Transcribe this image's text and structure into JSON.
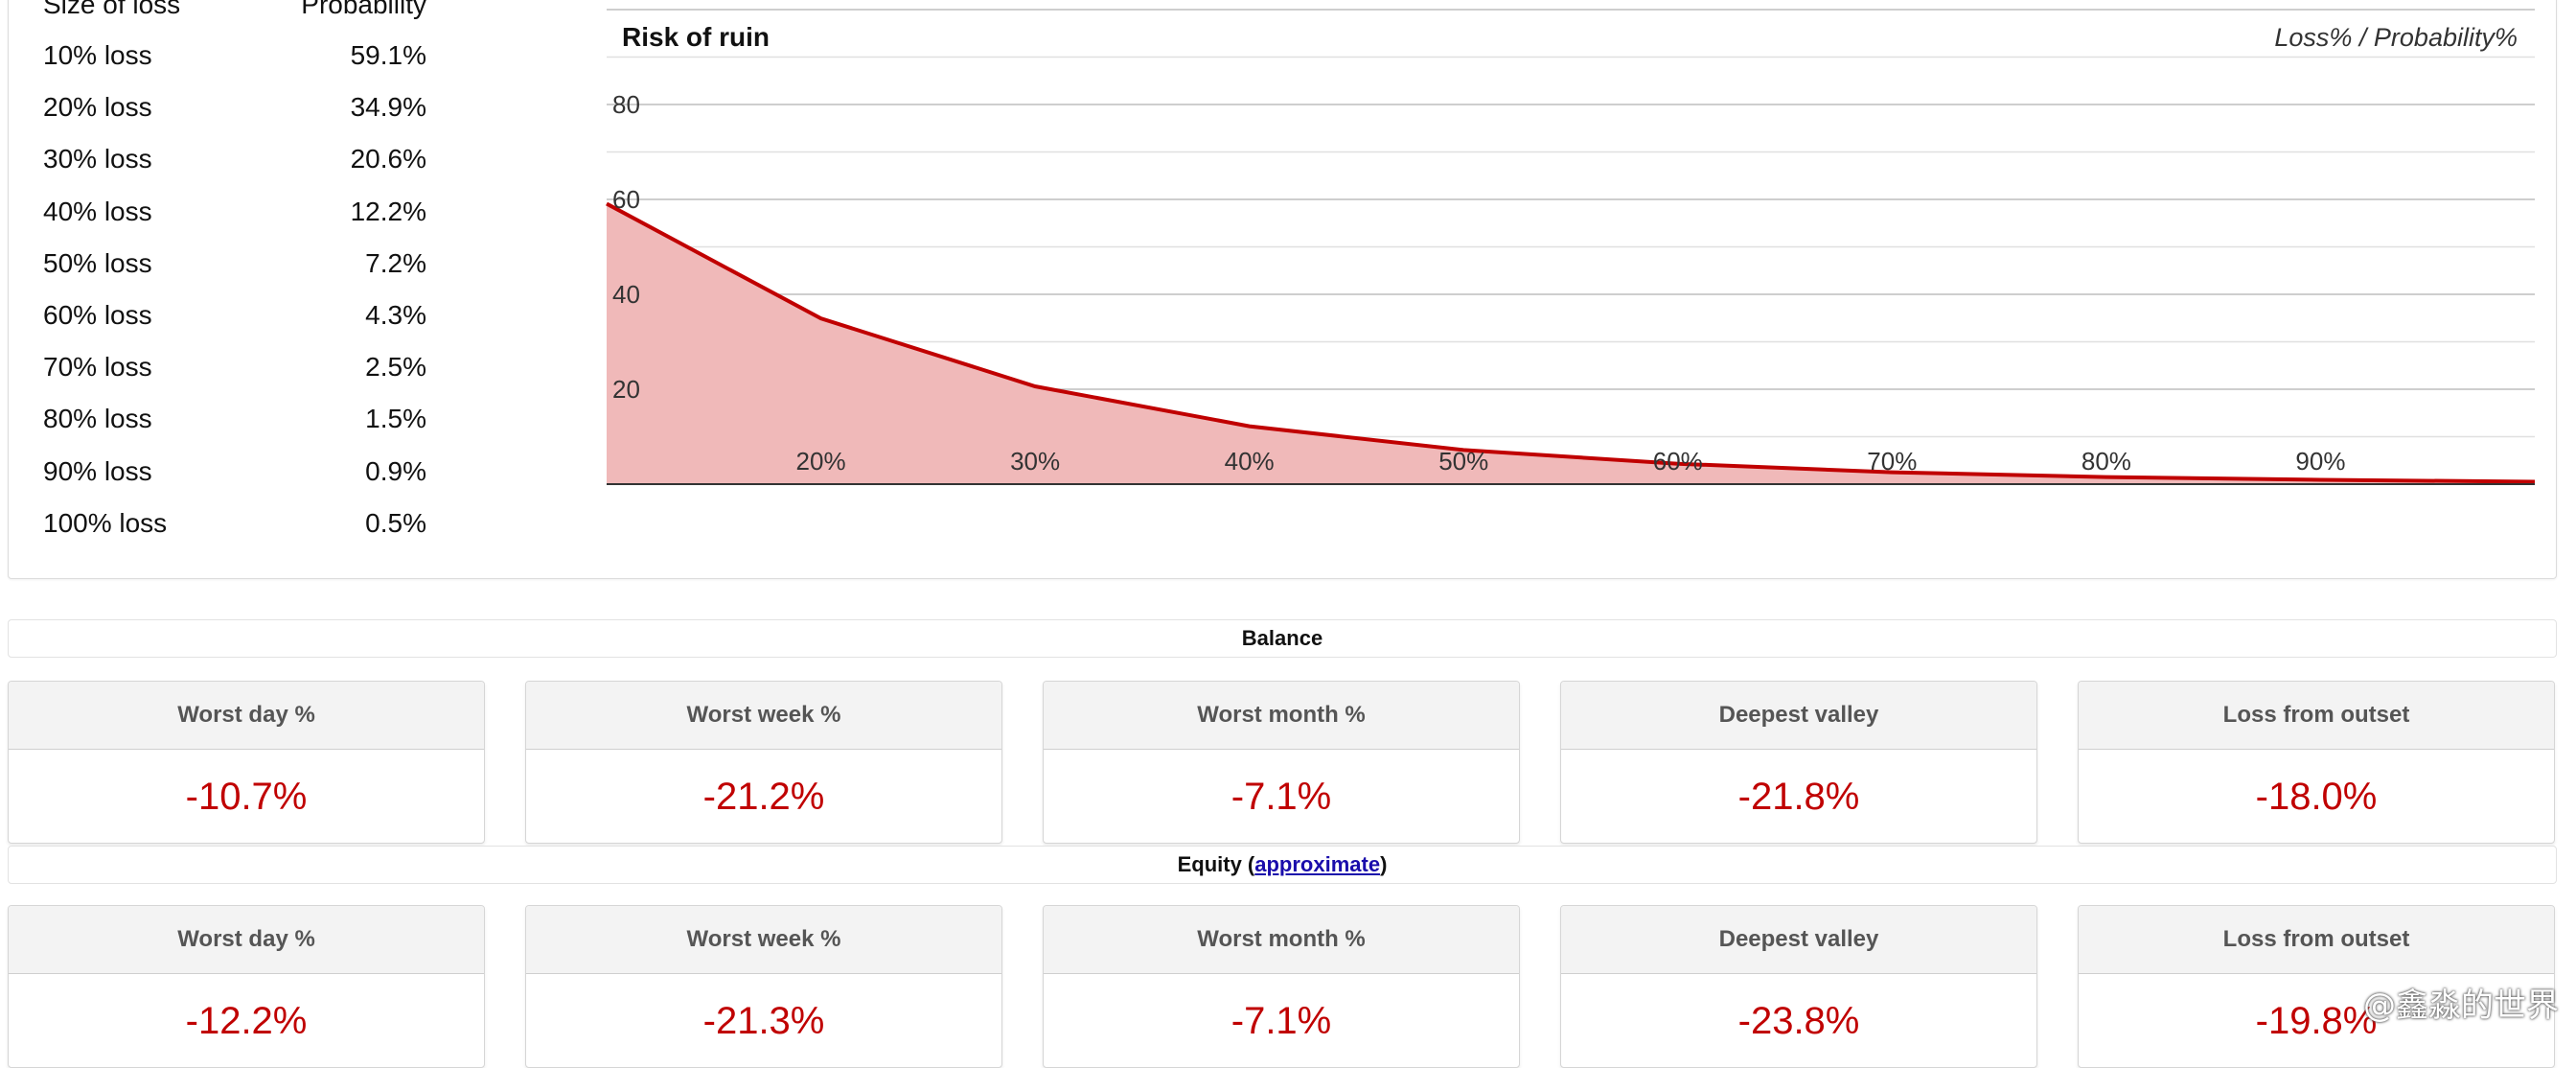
{
  "loss_table": {
    "header_size": "Size of loss",
    "header_prob": "Probability",
    "rows": [
      {
        "size": "10% loss",
        "prob": "59.1%"
      },
      {
        "size": "20% loss",
        "prob": "34.9%"
      },
      {
        "size": "30% loss",
        "prob": "20.6%"
      },
      {
        "size": "40% loss",
        "prob": "12.2%"
      },
      {
        "size": "50% loss",
        "prob": "7.2%"
      },
      {
        "size": "60% loss",
        "prob": "4.3%"
      },
      {
        "size": "70% loss",
        "prob": "2.5%"
      },
      {
        "size": "80% loss",
        "prob": "1.5%"
      },
      {
        "size": "90% loss",
        "prob": "0.9%"
      },
      {
        "size": "100% loss",
        "prob": "0.5%"
      }
    ]
  },
  "chart_data": {
    "type": "area",
    "title": "Risk of ruin",
    "subtitle": "Loss% / Probability%",
    "x": [
      10,
      20,
      30,
      40,
      50,
      60,
      70,
      80,
      90,
      100
    ],
    "values": [
      59.1,
      34.9,
      20.6,
      12.2,
      7.2,
      4.3,
      2.5,
      1.5,
      0.9,
      0.5
    ],
    "xlim": [
      10,
      100
    ],
    "ylim": [
      0,
      100
    ],
    "x_tick_labels": [
      "20%",
      "30%",
      "40%",
      "50%",
      "60%",
      "70%",
      "80%",
      "90%"
    ],
    "y_tick_labels": [
      "20",
      "40",
      "60",
      "80"
    ],
    "line_color": "#c00000",
    "fill_color": "#f0b9b9",
    "grid": true
  },
  "balance": {
    "title": "Balance",
    "cards": [
      {
        "label": "Worst day %",
        "value": "-10.7%"
      },
      {
        "label": "Worst week %",
        "value": "-21.2%"
      },
      {
        "label": "Worst month %",
        "value": "-7.1%"
      },
      {
        "label": "Deepest valley",
        "value": "-21.8%"
      },
      {
        "label": "Loss from outset",
        "value": "-18.0%"
      }
    ]
  },
  "equity": {
    "title_prefix": "Equity (",
    "title_link": "approximate",
    "title_suffix": ")",
    "cards": [
      {
        "label": "Worst day %",
        "value": "-12.2%"
      },
      {
        "label": "Worst week %",
        "value": "-21.3%"
      },
      {
        "label": "Worst month %",
        "value": "-7.1%"
      },
      {
        "label": "Deepest valley",
        "value": "-23.8%"
      },
      {
        "label": "Loss from outset",
        "value": "-19.8%"
      }
    ]
  },
  "watermark": "@鑫淼的世界",
  "colors": {
    "negative": "#c00000"
  }
}
